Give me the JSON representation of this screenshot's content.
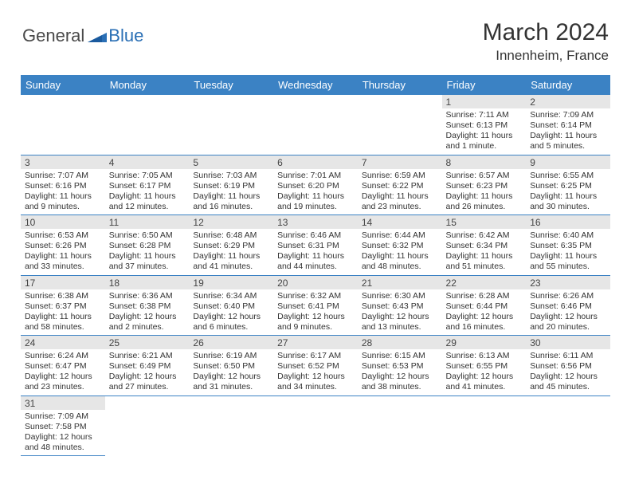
{
  "logo": {
    "text1": "General",
    "text2": "Blue"
  },
  "title": "March 2024",
  "location": "Innenheim, France",
  "header_bg": "#3b82c4",
  "weekdays": [
    "Sunday",
    "Monday",
    "Tuesday",
    "Wednesday",
    "Thursday",
    "Friday",
    "Saturday"
  ],
  "weeks": [
    [
      null,
      null,
      null,
      null,
      null,
      {
        "n": "1",
        "sunrise": "Sunrise: 7:11 AM",
        "sunset": "Sunset: 6:13 PM",
        "daylight": "Daylight: 11 hours and 1 minute."
      },
      {
        "n": "2",
        "sunrise": "Sunrise: 7:09 AM",
        "sunset": "Sunset: 6:14 PM",
        "daylight": "Daylight: 11 hours and 5 minutes."
      }
    ],
    [
      {
        "n": "3",
        "sunrise": "Sunrise: 7:07 AM",
        "sunset": "Sunset: 6:16 PM",
        "daylight": "Daylight: 11 hours and 9 minutes."
      },
      {
        "n": "4",
        "sunrise": "Sunrise: 7:05 AM",
        "sunset": "Sunset: 6:17 PM",
        "daylight": "Daylight: 11 hours and 12 minutes."
      },
      {
        "n": "5",
        "sunrise": "Sunrise: 7:03 AM",
        "sunset": "Sunset: 6:19 PM",
        "daylight": "Daylight: 11 hours and 16 minutes."
      },
      {
        "n": "6",
        "sunrise": "Sunrise: 7:01 AM",
        "sunset": "Sunset: 6:20 PM",
        "daylight": "Daylight: 11 hours and 19 minutes."
      },
      {
        "n": "7",
        "sunrise": "Sunrise: 6:59 AM",
        "sunset": "Sunset: 6:22 PM",
        "daylight": "Daylight: 11 hours and 23 minutes."
      },
      {
        "n": "8",
        "sunrise": "Sunrise: 6:57 AM",
        "sunset": "Sunset: 6:23 PM",
        "daylight": "Daylight: 11 hours and 26 minutes."
      },
      {
        "n": "9",
        "sunrise": "Sunrise: 6:55 AM",
        "sunset": "Sunset: 6:25 PM",
        "daylight": "Daylight: 11 hours and 30 minutes."
      }
    ],
    [
      {
        "n": "10",
        "sunrise": "Sunrise: 6:53 AM",
        "sunset": "Sunset: 6:26 PM",
        "daylight": "Daylight: 11 hours and 33 minutes."
      },
      {
        "n": "11",
        "sunrise": "Sunrise: 6:50 AM",
        "sunset": "Sunset: 6:28 PM",
        "daylight": "Daylight: 11 hours and 37 minutes."
      },
      {
        "n": "12",
        "sunrise": "Sunrise: 6:48 AM",
        "sunset": "Sunset: 6:29 PM",
        "daylight": "Daylight: 11 hours and 41 minutes."
      },
      {
        "n": "13",
        "sunrise": "Sunrise: 6:46 AM",
        "sunset": "Sunset: 6:31 PM",
        "daylight": "Daylight: 11 hours and 44 minutes."
      },
      {
        "n": "14",
        "sunrise": "Sunrise: 6:44 AM",
        "sunset": "Sunset: 6:32 PM",
        "daylight": "Daylight: 11 hours and 48 minutes."
      },
      {
        "n": "15",
        "sunrise": "Sunrise: 6:42 AM",
        "sunset": "Sunset: 6:34 PM",
        "daylight": "Daylight: 11 hours and 51 minutes."
      },
      {
        "n": "16",
        "sunrise": "Sunrise: 6:40 AM",
        "sunset": "Sunset: 6:35 PM",
        "daylight": "Daylight: 11 hours and 55 minutes."
      }
    ],
    [
      {
        "n": "17",
        "sunrise": "Sunrise: 6:38 AM",
        "sunset": "Sunset: 6:37 PM",
        "daylight": "Daylight: 11 hours and 58 minutes."
      },
      {
        "n": "18",
        "sunrise": "Sunrise: 6:36 AM",
        "sunset": "Sunset: 6:38 PM",
        "daylight": "Daylight: 12 hours and 2 minutes."
      },
      {
        "n": "19",
        "sunrise": "Sunrise: 6:34 AM",
        "sunset": "Sunset: 6:40 PM",
        "daylight": "Daylight: 12 hours and 6 minutes."
      },
      {
        "n": "20",
        "sunrise": "Sunrise: 6:32 AM",
        "sunset": "Sunset: 6:41 PM",
        "daylight": "Daylight: 12 hours and 9 minutes."
      },
      {
        "n": "21",
        "sunrise": "Sunrise: 6:30 AM",
        "sunset": "Sunset: 6:43 PM",
        "daylight": "Daylight: 12 hours and 13 minutes."
      },
      {
        "n": "22",
        "sunrise": "Sunrise: 6:28 AM",
        "sunset": "Sunset: 6:44 PM",
        "daylight": "Daylight: 12 hours and 16 minutes."
      },
      {
        "n": "23",
        "sunrise": "Sunrise: 6:26 AM",
        "sunset": "Sunset: 6:46 PM",
        "daylight": "Daylight: 12 hours and 20 minutes."
      }
    ],
    [
      {
        "n": "24",
        "sunrise": "Sunrise: 6:24 AM",
        "sunset": "Sunset: 6:47 PM",
        "daylight": "Daylight: 12 hours and 23 minutes."
      },
      {
        "n": "25",
        "sunrise": "Sunrise: 6:21 AM",
        "sunset": "Sunset: 6:49 PM",
        "daylight": "Daylight: 12 hours and 27 minutes."
      },
      {
        "n": "26",
        "sunrise": "Sunrise: 6:19 AM",
        "sunset": "Sunset: 6:50 PM",
        "daylight": "Daylight: 12 hours and 31 minutes."
      },
      {
        "n": "27",
        "sunrise": "Sunrise: 6:17 AM",
        "sunset": "Sunset: 6:52 PM",
        "daylight": "Daylight: 12 hours and 34 minutes."
      },
      {
        "n": "28",
        "sunrise": "Sunrise: 6:15 AM",
        "sunset": "Sunset: 6:53 PM",
        "daylight": "Daylight: 12 hours and 38 minutes."
      },
      {
        "n": "29",
        "sunrise": "Sunrise: 6:13 AM",
        "sunset": "Sunset: 6:55 PM",
        "daylight": "Daylight: 12 hours and 41 minutes."
      },
      {
        "n": "30",
        "sunrise": "Sunrise: 6:11 AM",
        "sunset": "Sunset: 6:56 PM",
        "daylight": "Daylight: 12 hours and 45 minutes."
      }
    ],
    [
      {
        "n": "31",
        "sunrise": "Sunrise: 7:09 AM",
        "sunset": "Sunset: 7:58 PM",
        "daylight": "Daylight: 12 hours and 48 minutes."
      },
      null,
      null,
      null,
      null,
      null,
      null
    ]
  ]
}
